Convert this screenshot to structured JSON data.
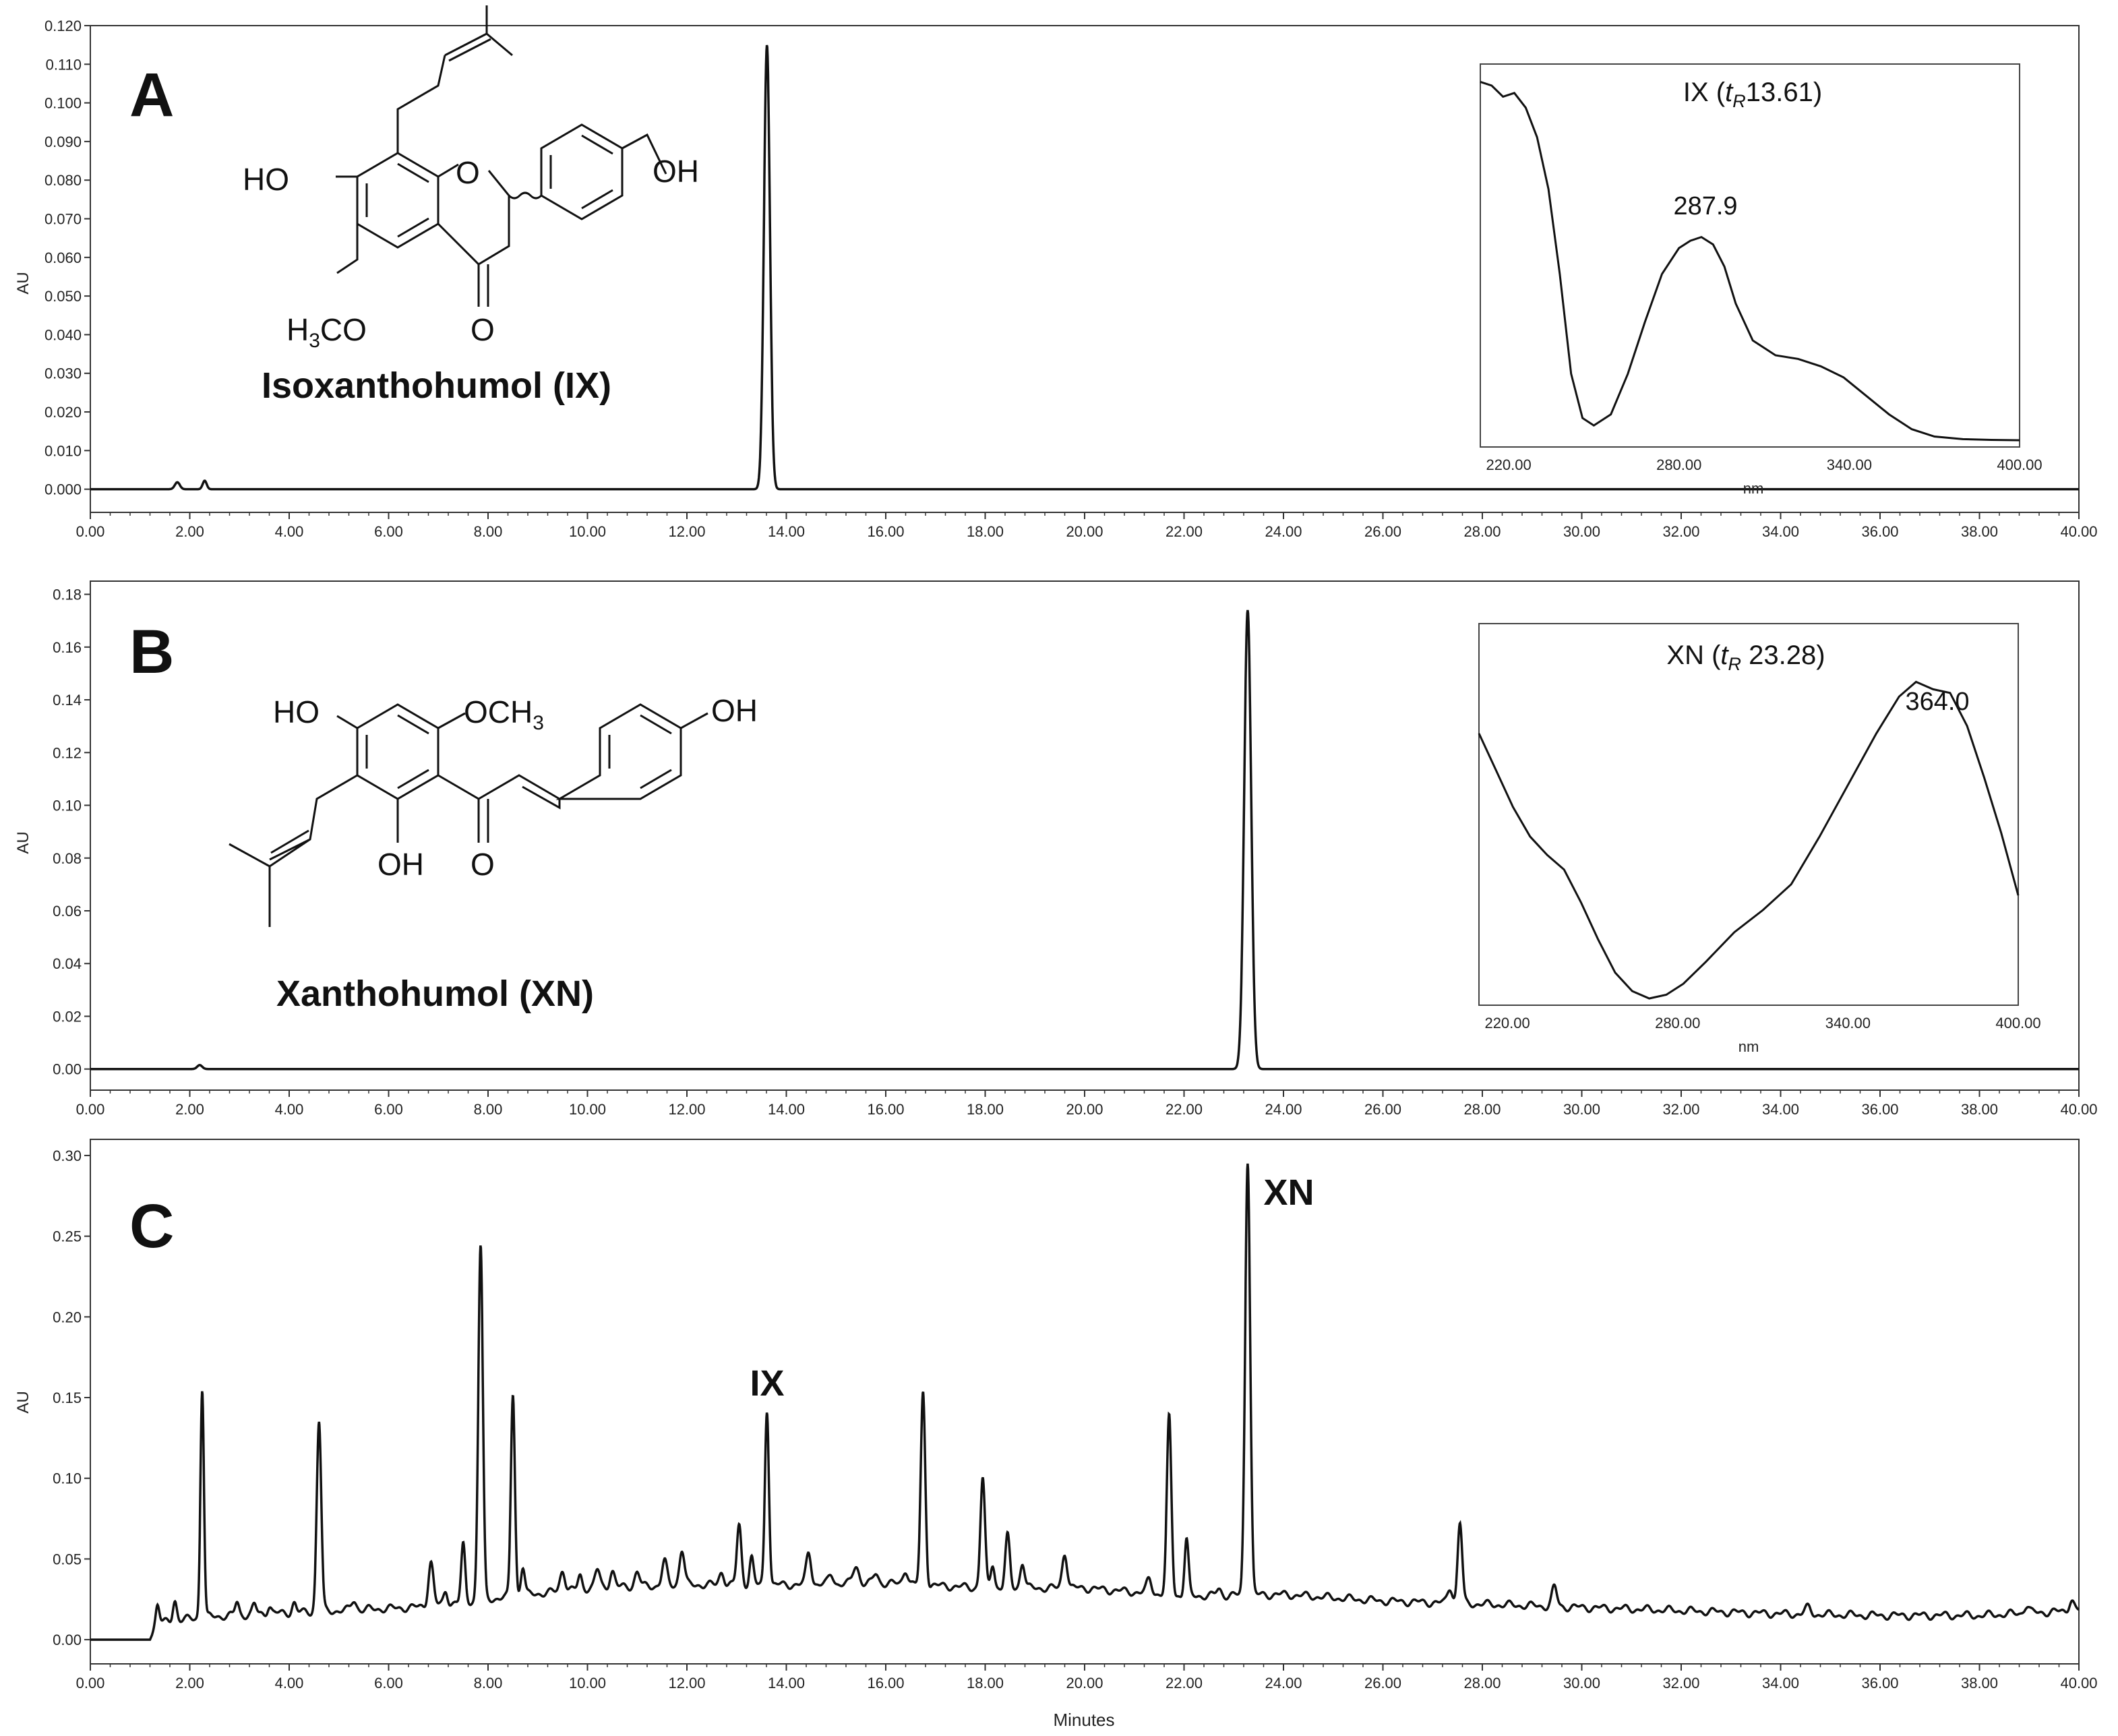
{
  "figure": {
    "colors": {
      "line": "#111111",
      "axis": "#333333",
      "background": "#ffffff"
    }
  },
  "chart_data": [
    {
      "type": "line",
      "panel_label": "A",
      "ylabel": "AU",
      "xlabel": "",
      "xlim": [
        0,
        40
      ],
      "ylim": [
        -0.006,
        0.12
      ],
      "x_ticks": [
        "0.00",
        "2.00",
        "4.00",
        "6.00",
        "8.00",
        "10.00",
        "12.00",
        "14.00",
        "16.00",
        "18.00",
        "20.00",
        "22.00",
        "24.00",
        "26.00",
        "28.00",
        "30.00",
        "32.00",
        "34.00",
        "36.00",
        "38.00",
        "40.00"
      ],
      "y_ticks": [
        "0.000",
        "0.010",
        "0.020",
        "0.030",
        "0.040",
        "0.050",
        "0.060",
        "0.070",
        "0.080",
        "0.090",
        "0.100",
        "0.110",
        "0.120"
      ],
      "compound_name": "Isoxanthohumol (IX)",
      "structure_labels": [
        "HO",
        "OH",
        "O",
        "O",
        "H3CO"
      ],
      "baseline": 0.0,
      "peaks": [
        {
          "t": 1.75,
          "h": 0.0018,
          "w": 0.05
        },
        {
          "t": 2.3,
          "h": 0.0022,
          "w": 0.04
        },
        {
          "t": 13.61,
          "h": 0.115,
          "w": 0.06
        }
      ],
      "inset": {
        "title": "IX (tR13.61)",
        "title_parts": [
          "IX (",
          "t",
          "R",
          "13.61)"
        ],
        "xlabel": "nm",
        "xlim": [
          210,
          400
        ],
        "x_ticks": [
          "220.00",
          "280.00",
          "340.00",
          "400.00"
        ],
        "annotation": "287.9",
        "spectrum_x": [
          210,
          214,
          218,
          222,
          226,
          230,
          234,
          238,
          242,
          246,
          250,
          256,
          262,
          268,
          274,
          280,
          284,
          287.9,
          292,
          296,
          300,
          306,
          314,
          322,
          330,
          338,
          346,
          354,
          362,
          370,
          380,
          390,
          400
        ],
        "spectrum_y": [
          0.97,
          0.96,
          0.93,
          0.94,
          0.9,
          0.82,
          0.68,
          0.45,
          0.18,
          0.06,
          0.04,
          0.07,
          0.18,
          0.32,
          0.45,
          0.52,
          0.54,
          0.55,
          0.53,
          0.47,
          0.37,
          0.27,
          0.23,
          0.22,
          0.2,
          0.17,
          0.12,
          0.07,
          0.03,
          0.01,
          0.003,
          0.001,
          0.0
        ]
      }
    },
    {
      "type": "line",
      "panel_label": "B",
      "ylabel": "AU",
      "xlabel": "",
      "xlim": [
        0,
        40
      ],
      "ylim": [
        -0.008,
        0.185
      ],
      "x_ticks": [
        "0.00",
        "2.00",
        "4.00",
        "6.00",
        "8.00",
        "10.00",
        "12.00",
        "14.00",
        "16.00",
        "18.00",
        "20.00",
        "22.00",
        "24.00",
        "26.00",
        "28.00",
        "30.00",
        "32.00",
        "34.00",
        "36.00",
        "38.00",
        "40.00"
      ],
      "y_ticks": [
        "0.00",
        "0.02",
        "0.04",
        "0.06",
        "0.08",
        "0.10",
        "0.12",
        "0.14",
        "0.16",
        "0.18"
      ],
      "compound_name": "Xanthohumol (XN)",
      "structure_labels": [
        "HO",
        "OCH3",
        "OH",
        "OH",
        "O"
      ],
      "baseline": 0.0,
      "peaks": [
        {
          "t": 2.2,
          "h": 0.0015,
          "w": 0.05
        },
        {
          "t": 23.28,
          "h": 0.174,
          "w": 0.07
        }
      ],
      "inset": {
        "title": "XN (tR 23.28)",
        "title_parts": [
          "XN (",
          "t",
          "R",
          " 23.28)"
        ],
        "xlabel": "nm",
        "xlim": [
          210,
          400
        ],
        "x_ticks": [
          "220.00",
          "280.00",
          "340.00",
          "400.00"
        ],
        "annotation": "364.0",
        "spectrum_x": [
          210,
          216,
          222,
          228,
          234,
          240,
          246,
          252,
          258,
          264,
          270,
          276,
          282,
          290,
          300,
          310,
          320,
          330,
          340,
          350,
          358,
          364,
          370,
          376,
          382,
          388,
          394,
          400
        ],
        "spectrum_y": [
          0.72,
          0.62,
          0.52,
          0.44,
          0.39,
          0.35,
          0.26,
          0.16,
          0.07,
          0.02,
          0.0,
          0.01,
          0.04,
          0.1,
          0.18,
          0.24,
          0.31,
          0.44,
          0.58,
          0.72,
          0.82,
          0.86,
          0.84,
          0.83,
          0.74,
          0.6,
          0.45,
          0.28
        ]
      }
    },
    {
      "type": "line",
      "panel_label": "C",
      "ylabel": "AU",
      "xlabel": "Minutes",
      "xlim": [
        0,
        40
      ],
      "ylim": [
        -0.015,
        0.31
      ],
      "x_ticks": [
        "0.00",
        "2.00",
        "4.00",
        "6.00",
        "8.00",
        "10.00",
        "12.00",
        "14.00",
        "16.00",
        "18.00",
        "20.00",
        "22.00",
        "24.00",
        "26.00",
        "28.00",
        "30.00",
        "32.00",
        "34.00",
        "36.00",
        "38.00",
        "40.00"
      ],
      "y_ticks": [
        "0.00",
        "0.05",
        "0.10",
        "0.15",
        "0.20",
        "0.25",
        "0.30"
      ],
      "peak_labels": [
        {
          "text": "IX",
          "t": 13.61,
          "y": 0.155
        },
        {
          "text": "XN",
          "t": 23.28,
          "y": 0.275
        }
      ],
      "baseline_points": [
        [
          0,
          0.0
        ],
        [
          1.2,
          0.0
        ],
        [
          1.35,
          0.01
        ],
        [
          2.25,
          0.014
        ],
        [
          3.5,
          0.016
        ],
        [
          6.5,
          0.02
        ],
        [
          8,
          0.025
        ],
        [
          10,
          0.032
        ],
        [
          12,
          0.034
        ],
        [
          14,
          0.034
        ],
        [
          16,
          0.035
        ],
        [
          18,
          0.032
        ],
        [
          20,
          0.032
        ],
        [
          22,
          0.027
        ],
        [
          24,
          0.028
        ],
        [
          26,
          0.024
        ],
        [
          28,
          0.022
        ],
        [
          30,
          0.02
        ],
        [
          32,
          0.018
        ],
        [
          34,
          0.016
        ],
        [
          36,
          0.015
        ],
        [
          38,
          0.015
        ],
        [
          40,
          0.018
        ]
      ],
      "peaks": [
        {
          "t": 1.35,
          "h": 0.012,
          "w": 0.04
        },
        {
          "t": 1.7,
          "h": 0.013,
          "w": 0.04
        },
        {
          "t": 2.25,
          "h": 0.142,
          "w": 0.035
        },
        {
          "t": 2.95,
          "h": 0.008,
          "w": 0.04
        },
        {
          "t": 3.3,
          "h": 0.006,
          "w": 0.04
        },
        {
          "t": 3.6,
          "h": 0.005,
          "w": 0.04
        },
        {
          "t": 4.1,
          "h": 0.006,
          "w": 0.04
        },
        {
          "t": 4.6,
          "h": 0.118,
          "w": 0.045
        },
        {
          "t": 5.3,
          "h": 0.006,
          "w": 0.05
        },
        {
          "t": 6.85,
          "h": 0.027,
          "w": 0.05
        },
        {
          "t": 7.15,
          "h": 0.008,
          "w": 0.04
        },
        {
          "t": 7.5,
          "h": 0.035,
          "w": 0.04
        },
        {
          "t": 7.85,
          "h": 0.22,
          "w": 0.045
        },
        {
          "t": 8.5,
          "h": 0.126,
          "w": 0.04
        },
        {
          "t": 8.7,
          "h": 0.018,
          "w": 0.04
        },
        {
          "t": 9.5,
          "h": 0.013,
          "w": 0.05
        },
        {
          "t": 9.85,
          "h": 0.008,
          "w": 0.04
        },
        {
          "t": 10.2,
          "h": 0.011,
          "w": 0.05
        },
        {
          "t": 10.5,
          "h": 0.01,
          "w": 0.05
        },
        {
          "t": 11.0,
          "h": 0.009,
          "w": 0.05
        },
        {
          "t": 11.55,
          "h": 0.015,
          "w": 0.05
        },
        {
          "t": 11.9,
          "h": 0.022,
          "w": 0.05
        },
        {
          "t": 12.7,
          "h": 0.008,
          "w": 0.05
        },
        {
          "t": 13.05,
          "h": 0.037,
          "w": 0.045
        },
        {
          "t": 13.3,
          "h": 0.017,
          "w": 0.04
        },
        {
          "t": 13.61,
          "h": 0.109,
          "w": 0.04
        },
        {
          "t": 14.45,
          "h": 0.02,
          "w": 0.05
        },
        {
          "t": 14.9,
          "h": 0.006,
          "w": 0.05
        },
        {
          "t": 15.4,
          "h": 0.011,
          "w": 0.06
        },
        {
          "t": 15.8,
          "h": 0.006,
          "w": 0.05
        },
        {
          "t": 16.4,
          "h": 0.009,
          "w": 0.05
        },
        {
          "t": 16.75,
          "h": 0.119,
          "w": 0.045
        },
        {
          "t": 17.95,
          "h": 0.068,
          "w": 0.045
        },
        {
          "t": 18.15,
          "h": 0.015,
          "w": 0.04
        },
        {
          "t": 18.45,
          "h": 0.032,
          "w": 0.045
        },
        {
          "t": 18.75,
          "h": 0.016,
          "w": 0.045
        },
        {
          "t": 19.6,
          "h": 0.022,
          "w": 0.05
        },
        {
          "t": 21.3,
          "h": 0.009,
          "w": 0.05
        },
        {
          "t": 21.7,
          "h": 0.11,
          "w": 0.045
        },
        {
          "t": 22.05,
          "h": 0.035,
          "w": 0.04
        },
        {
          "t": 22.7,
          "h": 0.004,
          "w": 0.05
        },
        {
          "t": 23.28,
          "h": 0.27,
          "w": 0.05
        },
        {
          "t": 27.35,
          "h": 0.01,
          "w": 0.05
        },
        {
          "t": 27.55,
          "h": 0.05,
          "w": 0.045
        },
        {
          "t": 29.45,
          "h": 0.012,
          "w": 0.05
        },
        {
          "t": 34.55,
          "h": 0.004,
          "w": 0.06
        },
        {
          "t": 38.95,
          "h": 0.005,
          "w": 0.05
        },
        {
          "t": 39.85,
          "h": 0.007,
          "w": 0.05
        }
      ]
    }
  ]
}
